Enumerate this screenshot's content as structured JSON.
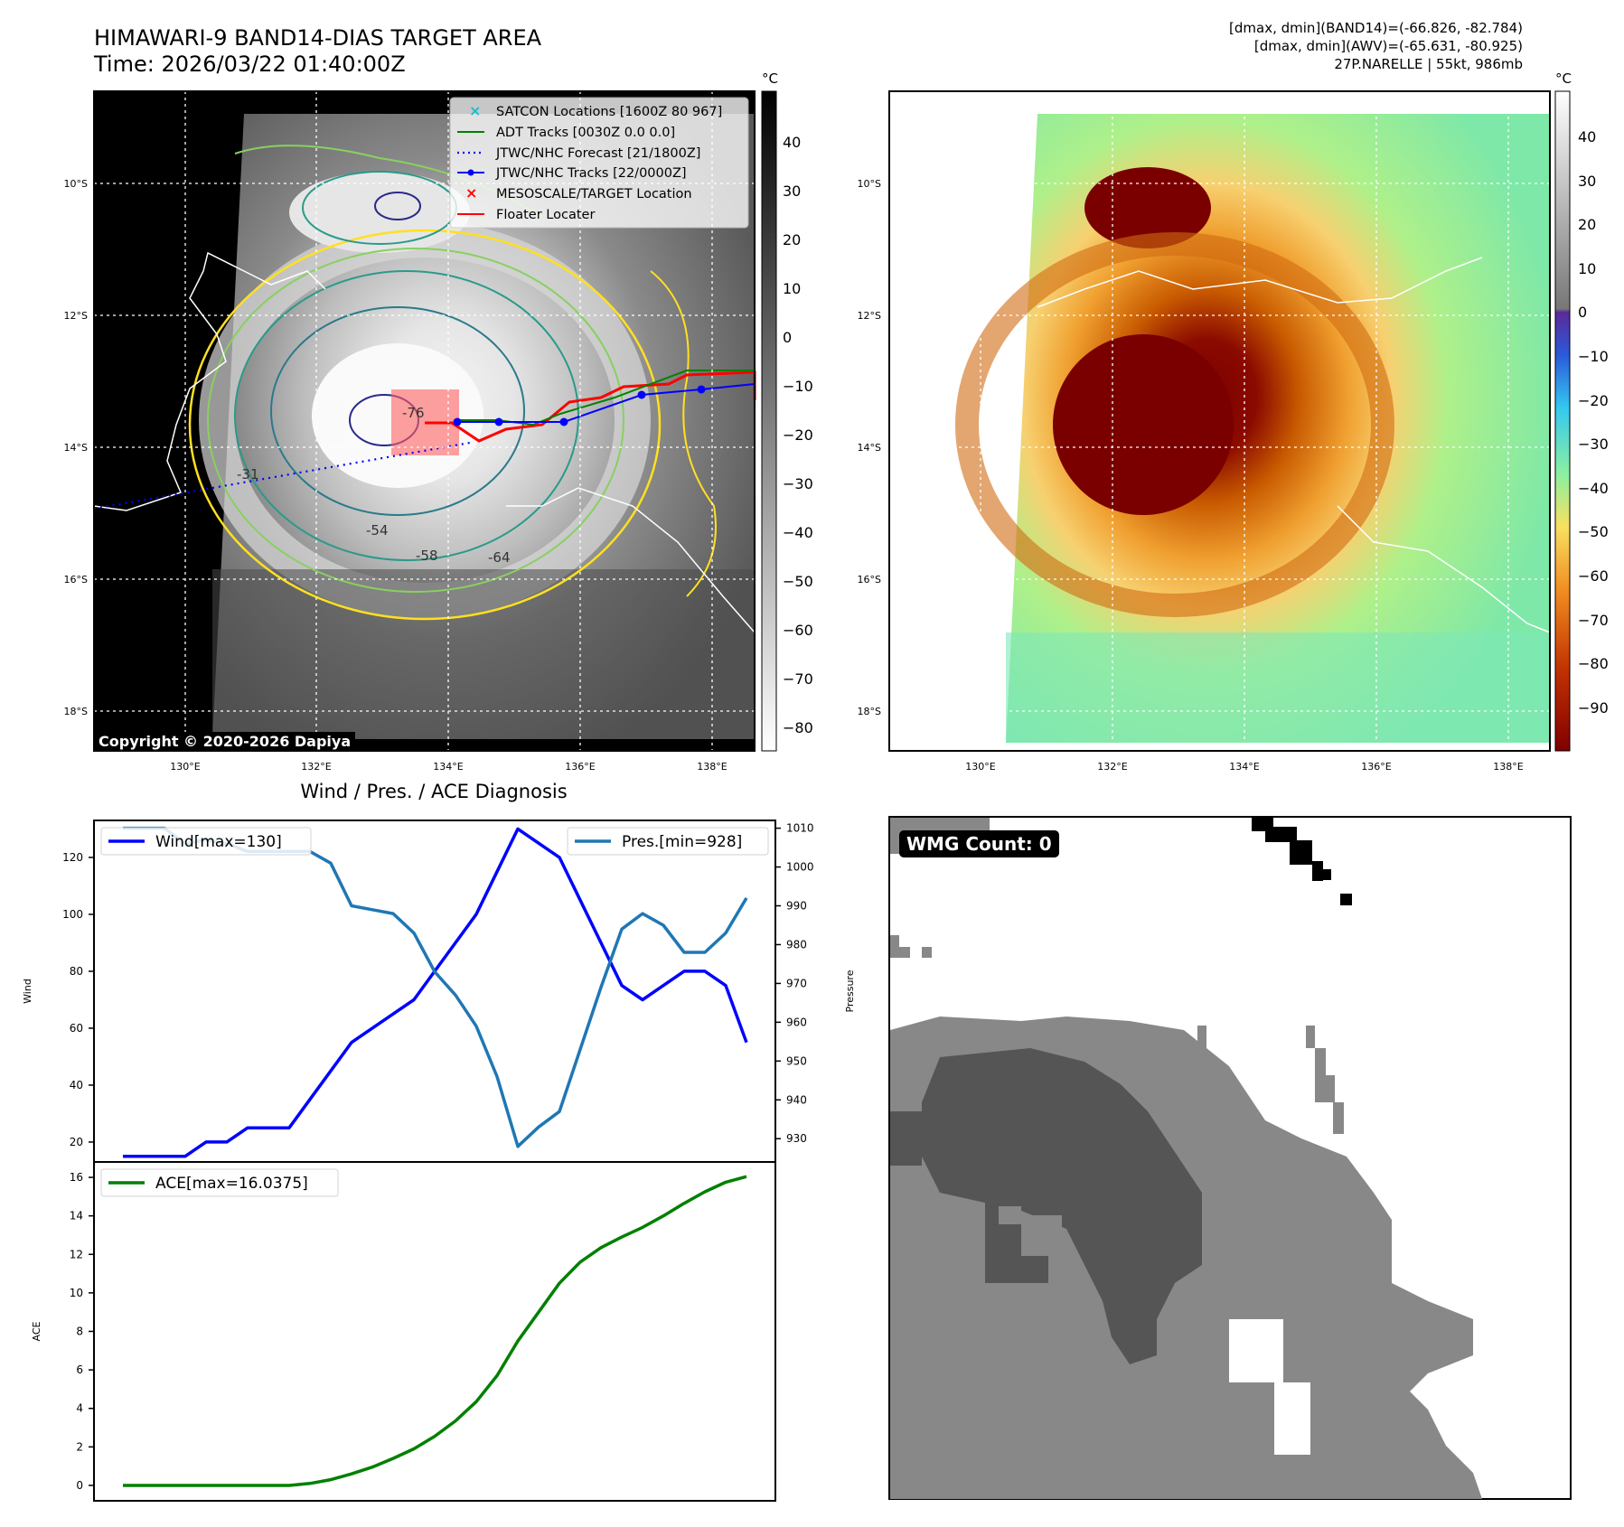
{
  "header": {
    "title_line1": "HIMAWARI-9 BAND14-DIAS TARGET AREA",
    "title_line2": "Time: 2026/03/22 01:40:00Z",
    "info_line1": "[dmax, dmin](BAND14)=(-66.826, -82.784)",
    "info_line2": "[dmax, dmin](AWV)=(-65.631, -80.925)",
    "info_line3": "27P.NARELLE | 55kt, 986mb"
  },
  "map": {
    "lat_labels": [
      "10°S",
      "12°S",
      "14°S",
      "16°S",
      "18°S"
    ],
    "lon_labels": [
      "130°E",
      "132°E",
      "134°E",
      "136°E",
      "138°E"
    ],
    "copyright": "Copyright © 2020-2026 Dapiya",
    "contour_labels": [
      "-76",
      "-54",
      "-58",
      "-64",
      "-31"
    ],
    "legend": [
      {
        "label": "SATCON Locations [1600Z 80 967]",
        "color": "#17becf",
        "marker": "x"
      },
      {
        "label": "ADT Tracks [0030Z 0.0 0.0]",
        "color": "#008000",
        "marker": "line"
      },
      {
        "label": "JTWC/NHC Forecast [21/1800Z]",
        "color": "#0000ff",
        "marker": "dotted"
      },
      {
        "label": "JTWC/NHC Tracks [22/0000Z]",
        "color": "#0000ff",
        "marker": "dotline"
      },
      {
        "label": "MESOSCALE/TARGET Location",
        "color": "#ff0000",
        "marker": "x"
      },
      {
        "label": "Floater Locater",
        "color": "#ff0000",
        "marker": "line"
      }
    ]
  },
  "colorbar_gray": {
    "unit": "°C",
    "ticks": [
      "40",
      "30",
      "20",
      "10",
      "0",
      "−10",
      "−20",
      "−30",
      "−40",
      "−50",
      "−60",
      "−70",
      "−80"
    ]
  },
  "colorbar_color": {
    "unit": "°C",
    "ticks": [
      "40",
      "30",
      "20",
      "10",
      "0",
      "−10",
      "−20",
      "−30",
      "−40",
      "−50",
      "−60",
      "−70",
      "−80",
      "−90"
    ]
  },
  "wmg": {
    "label": "WMG Count: 0"
  },
  "chart_data": [
    {
      "type": "line",
      "title": "Wind / Pres. / ACE Diagnosis",
      "ylabel": "Wind",
      "y2label": "Pressure",
      "ylim": [
        13,
        133
      ],
      "y2lim": [
        924,
        1012
      ],
      "yticks": [
        20,
        40,
        60,
        80,
        100,
        120
      ],
      "y2ticks": [
        930,
        940,
        950,
        960,
        970,
        980,
        990,
        1000,
        1010
      ],
      "series": [
        {
          "name": "Wind[max=130]",
          "axis": "left",
          "color": "#0000ff",
          "values": [
            15,
            15,
            15,
            15,
            20,
            20,
            25,
            25,
            25,
            35,
            45,
            55,
            60,
            65,
            70,
            80,
            90,
            100,
            115,
            130,
            125,
            120,
            105,
            90,
            75,
            70,
            75,
            80,
            80,
            75,
            55
          ]
        },
        {
          "name": "Pres.[min=928]",
          "axis": "right",
          "color": "#1f77b4",
          "values": [
            1010,
            1010,
            1010,
            1006,
            1007,
            1006,
            1004,
            1004,
            1004,
            1004,
            1001,
            990,
            989,
            988,
            983,
            973,
            967,
            959,
            946,
            928,
            933,
            937,
            953,
            969,
            984,
            988,
            985,
            978,
            978,
            983,
            992
          ]
        }
      ]
    },
    {
      "type": "line",
      "ylabel": "ACE",
      "ylim": [
        -0.8,
        16.8
      ],
      "yticks": [
        0,
        2,
        4,
        6,
        8,
        10,
        12,
        14,
        16
      ],
      "series": [
        {
          "name": "ACE[max=16.0375]",
          "color": "#008000",
          "values": [
            0,
            0,
            0,
            0,
            0,
            0,
            0,
            0,
            0,
            0.1,
            0.3,
            0.6,
            0.95,
            1.4,
            1.9,
            2.55,
            3.35,
            4.35,
            5.7,
            7.5,
            9.0,
            10.5,
            11.6,
            12.35,
            12.9,
            13.4,
            14.0,
            14.65,
            15.25,
            15.75,
            16.04
          ]
        }
      ]
    }
  ]
}
